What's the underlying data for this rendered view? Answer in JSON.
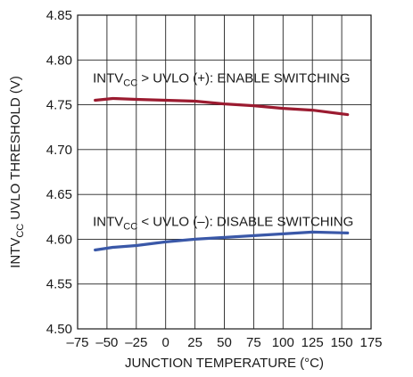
{
  "chart_data": {
    "type": "line",
    "title": "",
    "xlabel": "JUNCTION TEMPERATURE (°C)",
    "ylabel": {
      "main": "INTV",
      "sub": "CC",
      "rest": " UVLO THRESHOLD (V)"
    },
    "xlim": [
      -75,
      175
    ],
    "ylim": [
      4.5,
      4.85
    ],
    "xticks": [
      "–75",
      "–50",
      "–25",
      "0",
      "25",
      "50",
      "75",
      "100",
      "125",
      "150",
      "175"
    ],
    "xtick_values": [
      -75,
      -50,
      -25,
      0,
      25,
      50,
      75,
      100,
      125,
      150,
      175
    ],
    "yticks": [
      "4.50",
      "4.55",
      "4.60",
      "4.65",
      "4.70",
      "4.75",
      "4.80",
      "4.85"
    ],
    "ytick_values": [
      4.5,
      4.55,
      4.6,
      4.65,
      4.7,
      4.75,
      4.8,
      4.85
    ],
    "grid": true,
    "series": [
      {
        "color": "#9b1b30",
        "x": [
          -60,
          -45,
          -25,
          0,
          25,
          50,
          75,
          100,
          125,
          155
        ],
        "y": [
          4.755,
          4.757,
          4.756,
          4.755,
          4.754,
          4.751,
          4.749,
          4.746,
          4.744,
          4.739
        ]
      },
      {
        "color": "#3a58a8",
        "x": [
          -60,
          -45,
          -25,
          0,
          25,
          50,
          75,
          100,
          125,
          155
        ],
        "y": [
          4.588,
          4.591,
          4.593,
          4.597,
          4.6,
          4.602,
          4.604,
          4.606,
          4.608,
          4.607
        ]
      }
    ],
    "annotations": [
      {
        "main": "INTV",
        "sub": "CC",
        "rest": " > UVLO (+): ENABLE SWITCHING",
        "x": -62,
        "y": 4.775
      },
      {
        "main": "INTV",
        "sub": "CC",
        "rest": " < UVLO (–): DISABLE SWITCHING",
        "x": -62,
        "y": 4.615
      }
    ]
  }
}
